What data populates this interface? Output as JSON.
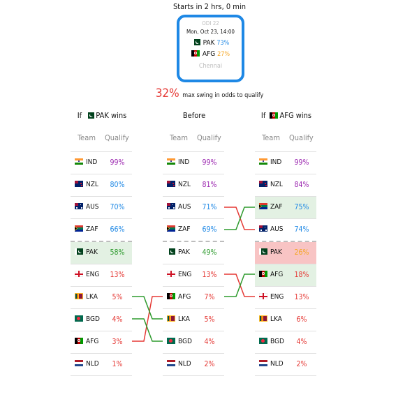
{
  "header": {
    "starts_in": "Starts in 2 hrs, 0 min"
  },
  "match": {
    "stage": "ODI 22",
    "datetime": "Mon, Oct 23, 14:00",
    "team1": {
      "code": "PAK",
      "pct": "73%",
      "pct_color": "#1e88e5"
    },
    "team2": {
      "code": "AFG",
      "pct": "27%",
      "pct_color": "#f5a623"
    },
    "venue": "Chennai"
  },
  "swing": {
    "value": "32%",
    "text": "max swing in odds to qualify"
  },
  "colors": {
    "accent": "#1e88e5",
    "purple": "#9c27b0",
    "blue": "#1e88e5",
    "green": "#2e9b2e",
    "red": "#e53935",
    "orange": "#f5a623"
  },
  "tables": [
    {
      "prefix": "If",
      "team": "PAK",
      "suffix": "wins",
      "headers": [
        "Team",
        "Qualify"
      ],
      "rows": [
        {
          "team": "IND",
          "flag": "ind",
          "value": "99%",
          "color": "#9c27b0",
          "bg": ""
        },
        {
          "team": "NZL",
          "flag": "nzl",
          "value": "80%",
          "color": "#1e88e5",
          "bg": ""
        },
        {
          "team": "AUS",
          "flag": "aus",
          "value": "70%",
          "color": "#1e88e5",
          "bg": ""
        },
        {
          "team": "ZAF",
          "flag": "zaf",
          "value": "66%",
          "color": "#1e88e5",
          "bg": ""
        },
        {
          "team": "PAK",
          "flag": "pak",
          "value": "58%",
          "color": "#2e9b2e",
          "bg": "#e3f1e3"
        },
        {
          "team": "ENG",
          "flag": "eng",
          "value": "13%",
          "color": "#e53935",
          "bg": ""
        },
        {
          "team": "LKA",
          "flag": "lka",
          "value": "5%",
          "color": "#e53935",
          "bg": ""
        },
        {
          "team": "BGD",
          "flag": "bgd",
          "value": "4%",
          "color": "#e53935",
          "bg": ""
        },
        {
          "team": "AFG",
          "flag": "afg",
          "value": "3%",
          "color": "#e53935",
          "bg": ""
        },
        {
          "team": "NLD",
          "flag": "nld",
          "value": "1%",
          "color": "#e53935",
          "bg": ""
        }
      ]
    },
    {
      "prefix": "",
      "team": "Before",
      "suffix": "",
      "headers": [
        "Team",
        "Qualify"
      ],
      "rows": [
        {
          "team": "IND",
          "flag": "ind",
          "value": "99%",
          "color": "#9c27b0",
          "bg": ""
        },
        {
          "team": "NZL",
          "flag": "nzl",
          "value": "81%",
          "color": "#9c27b0",
          "bg": ""
        },
        {
          "team": "AUS",
          "flag": "aus",
          "value": "71%",
          "color": "#1e88e5",
          "bg": ""
        },
        {
          "team": "ZAF",
          "flag": "zaf",
          "value": "69%",
          "color": "#1e88e5",
          "bg": ""
        },
        {
          "team": "PAK",
          "flag": "pak",
          "value": "49%",
          "color": "#2e9b2e",
          "bg": ""
        },
        {
          "team": "ENG",
          "flag": "eng",
          "value": "13%",
          "color": "#e53935",
          "bg": ""
        },
        {
          "team": "AFG",
          "flag": "afg",
          "value": "7%",
          "color": "#e53935",
          "bg": ""
        },
        {
          "team": "LKA",
          "flag": "lka",
          "value": "5%",
          "color": "#e53935",
          "bg": ""
        },
        {
          "team": "BGD",
          "flag": "bgd",
          "value": "4%",
          "color": "#e53935",
          "bg": ""
        },
        {
          "team": "NLD",
          "flag": "nld",
          "value": "2%",
          "color": "#e53935",
          "bg": ""
        }
      ]
    },
    {
      "prefix": "If",
      "team": "AFG",
      "suffix": "wins",
      "headers": [
        "Team",
        "Qualify"
      ],
      "rows": [
        {
          "team": "IND",
          "flag": "ind",
          "value": "99%",
          "color": "#9c27b0",
          "bg": ""
        },
        {
          "team": "NZL",
          "flag": "nzl",
          "value": "84%",
          "color": "#9c27b0",
          "bg": ""
        },
        {
          "team": "ZAF",
          "flag": "zaf",
          "value": "75%",
          "color": "#1e88e5",
          "bg": "#e3f1e3"
        },
        {
          "team": "AUS",
          "flag": "aus",
          "value": "74%",
          "color": "#1e88e5",
          "bg": ""
        },
        {
          "team": "PAK",
          "flag": "pak",
          "value": "26%",
          "color": "#f5a623",
          "bg": "#f8c4c4"
        },
        {
          "team": "AFG",
          "flag": "afg",
          "value": "18%",
          "color": "#e53935",
          "bg": "#e3f1e3"
        },
        {
          "team": "ENG",
          "flag": "eng",
          "value": "13%",
          "color": "#e53935",
          "bg": ""
        },
        {
          "team": "LKA",
          "flag": "lka",
          "value": "6%",
          "color": "#e53935",
          "bg": ""
        },
        {
          "team": "BGD",
          "flag": "bgd",
          "value": "4%",
          "color": "#e53935",
          "bg": ""
        },
        {
          "team": "NLD",
          "flag": "nld",
          "value": "2%",
          "color": "#e53935",
          "bg": ""
        }
      ]
    }
  ]
}
